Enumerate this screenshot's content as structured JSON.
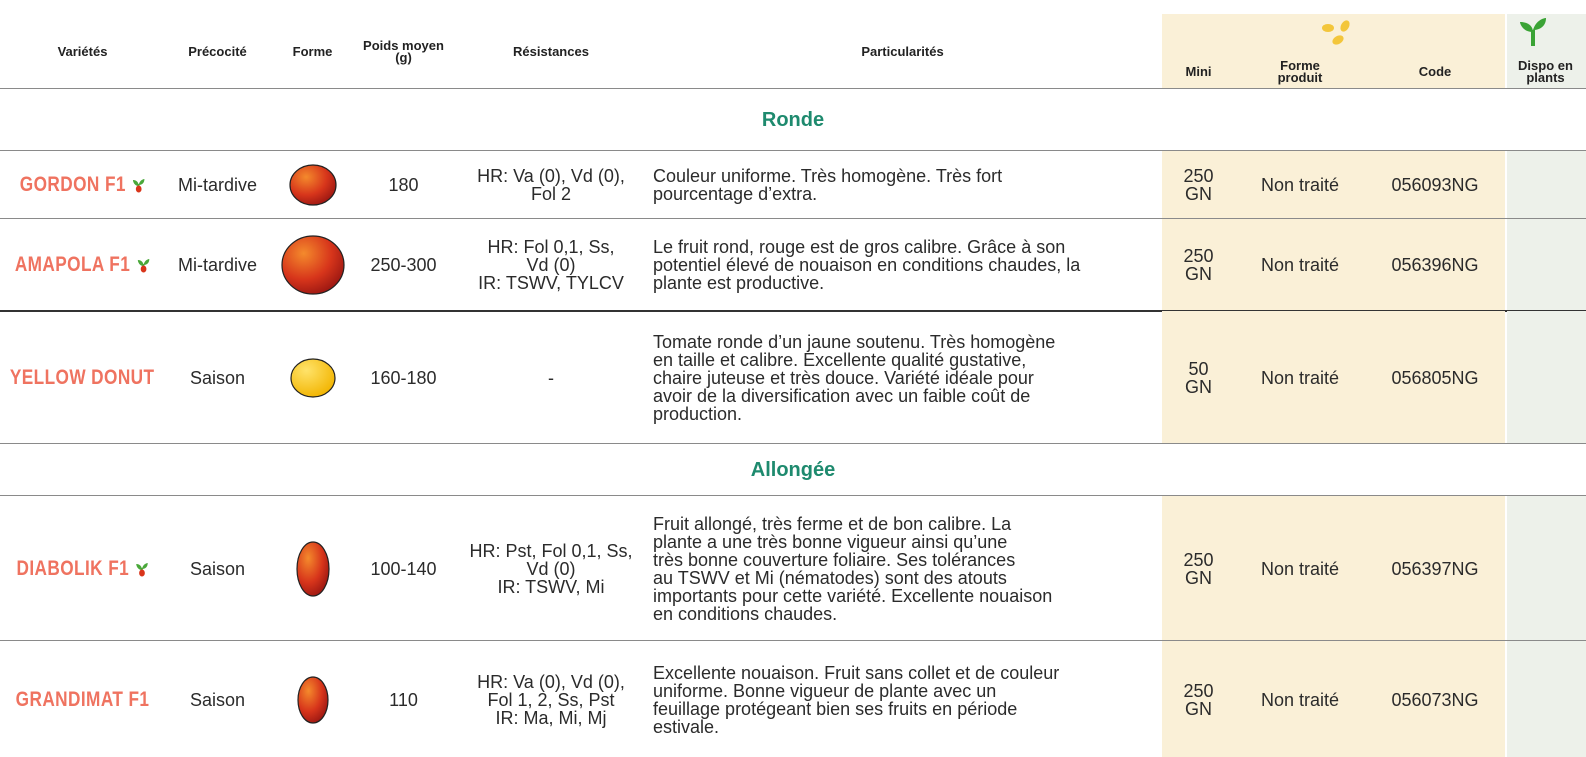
{
  "header": {
    "columns": [
      [
        "Variétés"
      ],
      [
        "Précocité"
      ],
      [
        "Forme"
      ],
      [
        "Poids moyen (g)"
      ],
      [
        "Résistances"
      ],
      [
        "Particularités"
      ]
    ],
    "sub_columns": [
      [
        "Mini"
      ],
      [
        "Forme",
        "produit"
      ],
      [
        "Code"
      ],
      [
        "Dispo en",
        "plants"
      ]
    ]
  },
  "groups": [
    {
      "title": "Ronde",
      "rows": [
        {
          "name": "GORDON F1",
          "icon": true,
          "precocite": "Mi-tardive",
          "poids": "180",
          "resistances": [
            "HR: Va (0), Vd (0),",
            "Fol 2"
          ],
          "particularites": [
            "Couleur uniforme. Très homogène. Très fort",
            "pourcentage d’extra."
          ],
          "mini": [
            "250",
            "GN"
          ],
          "forme_produit": "Non traité",
          "code": "056093NG"
        },
        {
          "name": "AMAPOLA F1",
          "icon": true,
          "precocite": "Mi-tardive",
          "poids": "250-300",
          "resistances": [
            "HR: Fol 0,1, Ss,",
            "Vd (0)",
            "IR: TSWV, TYLCV"
          ],
          "particularites": [
            "Le fruit rond, rouge est de gros calibre. Grâce à son",
            "potentiel élevé de nouaison en conditions chaudes, la",
            "plante est productive."
          ],
          "mini": [
            "250",
            "GN"
          ],
          "forme_produit": "Non traité",
          "code": "056396NG"
        },
        {
          "name": "YELLOW DONUT",
          "icon": false,
          "precocite": "Saison",
          "poids": "160-180",
          "resistances": [
            "-"
          ],
          "particularites": [
            "Tomate ronde d’un jaune soutenu. Très homogène",
            "en taille et calibre. Excellente qualité gustative,",
            "chaire juteuse et très douce. Variété idéale pour",
            "avoir de la diversification avec un faible coût de",
            "production."
          ],
          "mini": [
            "50",
            "GN"
          ],
          "forme_produit": "Non traité",
          "code": "056805NG"
        }
      ]
    },
    {
      "title": "Allongée",
      "rows": [
        {
          "name": "DIABOLIK F1",
          "icon": true,
          "precocite": "Saison",
          "poids": "100-140",
          "resistances": [
            "HR: Pst, Fol 0,1, Ss,",
            "Vd (0)",
            "IR: TSWV, Mi"
          ],
          "particularites": [
            "Fruit allongé, très ferme et de bon calibre. La",
            "plante a une très bonne vigueur ainsi qu’une",
            "très bonne couverture foliaire. Ses tolérances",
            "au TSWV et Mi (nématodes) sont des atouts",
            "importants pour cette variété. Excellente nouaison",
            "en conditions chaudes."
          ],
          "mini": [
            "250",
            "GN"
          ],
          "forme_produit": "Non traité",
          "code": "056397NG"
        },
        {
          "name": "GRANDIMAT F1",
          "icon": false,
          "precocite": "Saison",
          "poids": "110",
          "resistances": [
            "HR: Va (0), Vd (0),",
            "Fol 1, 2, Ss, Pst",
            "IR: Ma, Mi, Mj"
          ],
          "particularites": [
            "Excellente nouaison. Fruit sans collet et de couleur",
            "uniforme. Bonne vigueur de plante avec un",
            "feuillage protégeant bien ses fruits en période",
            "estivale."
          ],
          "mini": [
            "250",
            "GN"
          ],
          "forme_produit": "Non traité",
          "code": "056073NG"
        }
      ]
    }
  ]
}
